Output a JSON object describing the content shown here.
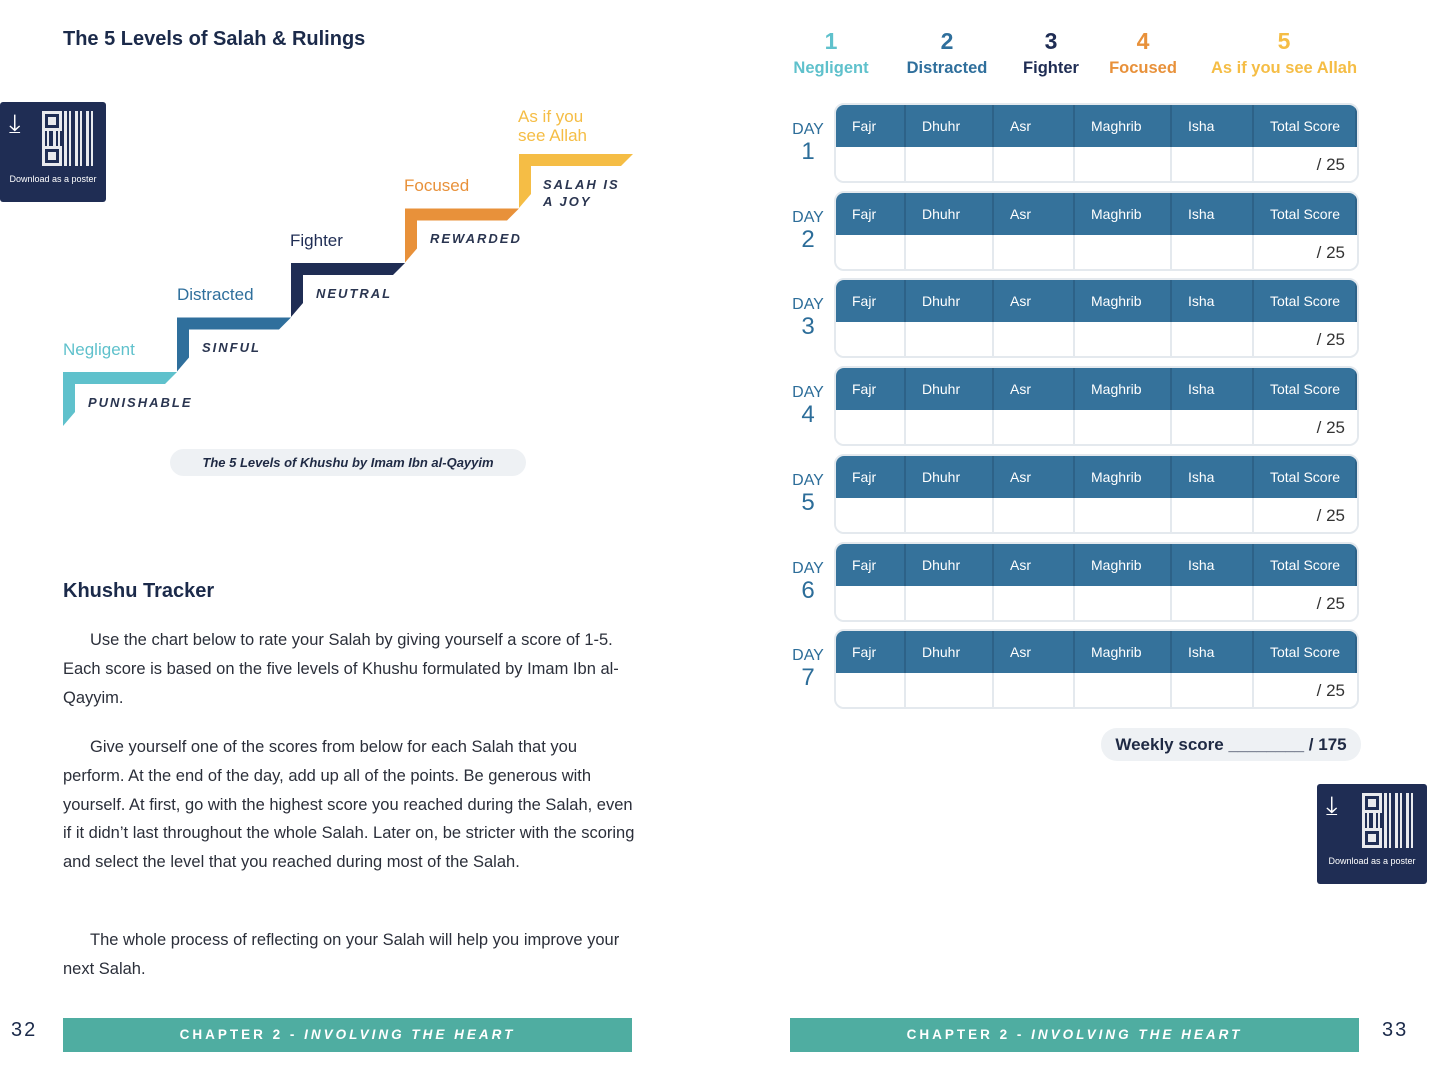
{
  "left": {
    "title": "The 5 Levels of Salah & Rulings",
    "qr_caption": "Download as a poster",
    "levels": [
      {
        "name": "Negligent",
        "ruling": "PUNISHABLE",
        "color": "#5fc1cc"
      },
      {
        "name": "Distracted",
        "ruling": "SINFUL",
        "color": "#2f6f9c"
      },
      {
        "name": "Fighter",
        "ruling": "NEUTRAL",
        "color": "#1f2d54"
      },
      {
        "name": "Focused",
        "ruling": "REWARDED",
        "color": "#e8913a"
      },
      {
        "name": "As if you see Allah",
        "ruling": "SALAH IS A JOY",
        "color": "#f5bd45"
      }
    ],
    "diagram_caption": "The 5 Levels of Khushu by Imam Ibn al-Qayyim",
    "section_title": "Khushu Tracker",
    "paragraphs": [
      "Use the chart below to rate your Salah by giving yourself a score of 1-5. Each score is based on the five levels of Khushu formulated by Imam Ibn al-Qayyim.",
      "Give yourself one of the scores from below for each Salah that you perform. At the end of the day, add up all of the points. Be generous with yourself. At first, go with the highest score you reached during the Salah, even if it didn’t last throughout the whole Salah. Later on, be stricter with the scoring and select the level that you reached during most of the Salah.",
      "The whole process of reflecting on your Salah will help you improve your next Salah."
    ],
    "page_number": "32",
    "footer": {
      "prefix": "CHAPTER 2 - ",
      "suffix": "INVOLVING THE HEART"
    }
  },
  "right": {
    "legend": [
      {
        "num": "1",
        "label": "Negligent",
        "color": "#5fc1cc"
      },
      {
        "num": "2",
        "label": "Distracted",
        "color": "#2f6f9c"
      },
      {
        "num": "3",
        "label": "Fighter",
        "color": "#1f2d54"
      },
      {
        "num": "4",
        "label": "Focused",
        "color": "#e8913a"
      },
      {
        "num": "5",
        "label": "As if you see Allah",
        "color": "#f5bd45"
      }
    ],
    "day_label": "DAY",
    "columns": [
      "Fajr",
      "Dhuhr",
      "Asr",
      "Maghrib",
      "Isha",
      "Total Score"
    ],
    "days": [
      "1",
      "2",
      "3",
      "4",
      "5",
      "6",
      "7"
    ],
    "total_suffix": "/ 25",
    "weekly": "Weekly score ________ / 175",
    "qr_caption": "Download as a poster",
    "page_number": "33",
    "footer": {
      "prefix": "CHAPTER 2 - ",
      "suffix": "INVOLVING THE HEART"
    }
  }
}
